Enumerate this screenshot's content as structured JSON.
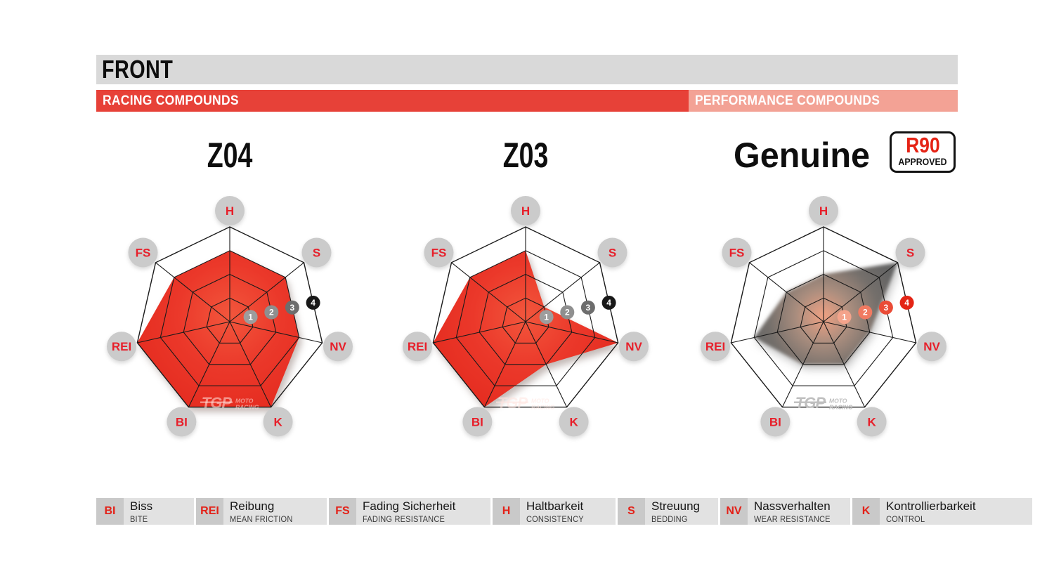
{
  "header": {
    "section_title": "FRONT",
    "bands": [
      {
        "label": "RACING COMPOUNDS",
        "color": "#e74138"
      },
      {
        "label": "PERFORMANCE COMPOUNDS",
        "color": "#f3a295"
      }
    ]
  },
  "approval_badge": {
    "line1": "R90",
    "line2": "APPROVED"
  },
  "watermark": {
    "brand": "TGP",
    "sub1": "MOTO",
    "sub2": "RACING"
  },
  "chart_data": [
    {
      "type": "radar",
      "title": "Z04",
      "group": "racing",
      "max": 4,
      "rings": [
        1,
        2,
        3,
        4
      ],
      "axes": [
        "H",
        "S",
        "NV",
        "K",
        "BI",
        "REI",
        "FS"
      ],
      "values": [
        3,
        3,
        3,
        4,
        4,
        4,
        3
      ]
    },
    {
      "type": "radar",
      "title": "Z03",
      "group": "racing",
      "max": 4,
      "rings": [
        1,
        2,
        3,
        4
      ],
      "axes": [
        "H",
        "S",
        "NV",
        "K",
        "BI",
        "REI",
        "FS"
      ],
      "values": [
        3,
        1,
        4,
        2,
        4,
        4,
        3
      ]
    },
    {
      "type": "radar",
      "title": "Genuine",
      "group": "performance",
      "max": 4,
      "rings": [
        1,
        2,
        3,
        4
      ],
      "axes": [
        "H",
        "S",
        "NV",
        "K",
        "BI",
        "REI",
        "FS"
      ],
      "values": [
        2,
        4,
        2,
        2,
        2,
        3,
        2
      ]
    }
  ],
  "legend": [
    {
      "abbr": "BI",
      "term": "Biss",
      "translation": "BITE"
    },
    {
      "abbr": "REI",
      "term": "Reibung",
      "translation": "MEAN FRICTION"
    },
    {
      "abbr": "FS",
      "term": "Fading Sicherheit",
      "translation": "FADING RESISTANCE"
    },
    {
      "abbr": "H",
      "term": "Haltbarkeit",
      "translation": "CONSISTENCY"
    },
    {
      "abbr": "S",
      "term": "Streuung",
      "translation": "BEDDING"
    },
    {
      "abbr": "NV",
      "term": "Nassverhalten",
      "translation": "WEAR RESISTANCE"
    },
    {
      "abbr": "K",
      "term": "Kontrollierbarkeit",
      "translation": "CONTROL"
    }
  ],
  "colors": {
    "header_bar_gray": "#d9d9d9",
    "racing_red": "#e74138",
    "performance_salmon": "#f3a295",
    "axis_label_red": "#e71f2a",
    "axis_circle_gray": "#cbcbcb",
    "grid_line": "#1a1a1a",
    "legend_abbr_bg": "#c9c9c9",
    "legend_text_bg": "#e2e2e2",
    "marker_grays": [
      "#9d9d9d",
      "#8f8f8f",
      "#6d6d6d",
      "#181818"
    ],
    "marker_reds": [
      "#f4a38b",
      "#f17a61",
      "#ea4b36",
      "#e42415"
    ],
    "red_fill_stops": [
      "#f2563c",
      "#eb382a",
      "#e42b1f"
    ],
    "genuine_fill_stops": [
      "#f0a183",
      "#a98d7e",
      "#746f6b",
      "#646464"
    ]
  }
}
